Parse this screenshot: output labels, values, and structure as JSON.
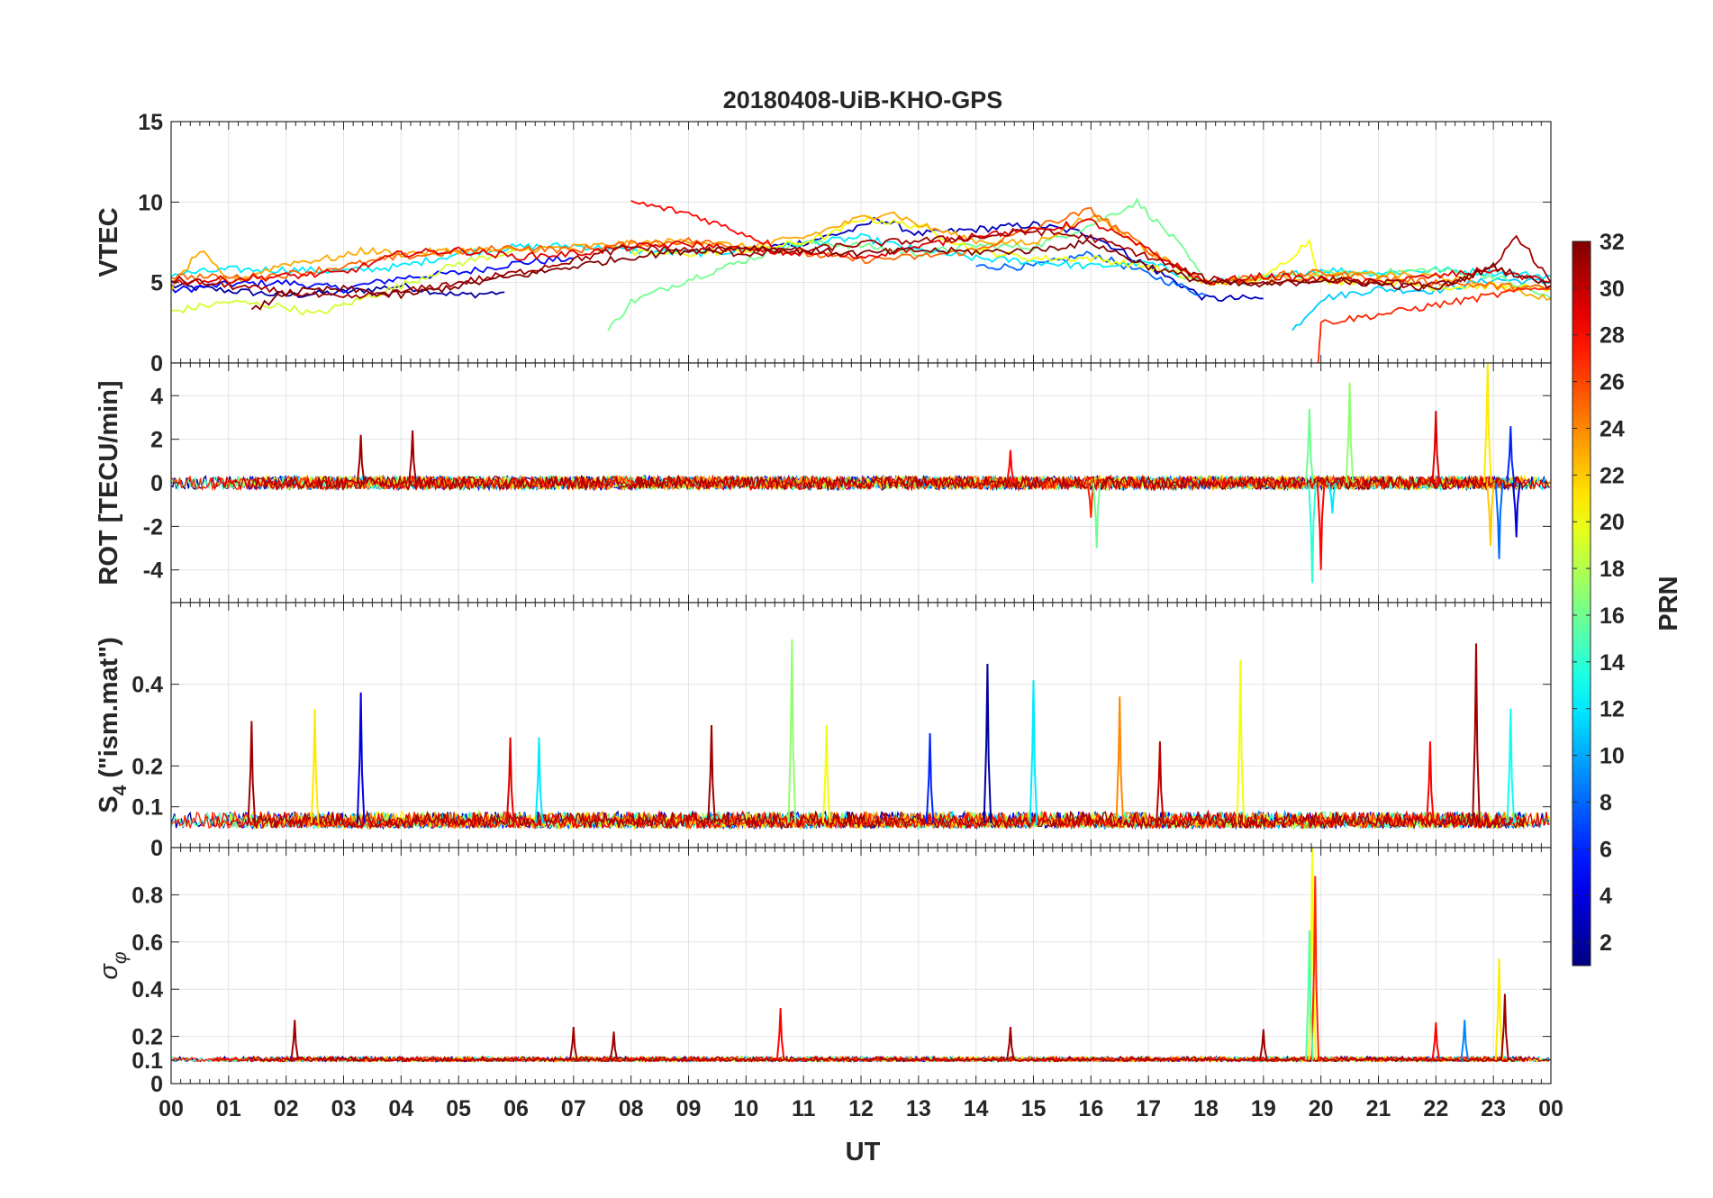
{
  "figure": {
    "title": "20180408-UiB-KHO-GPS",
    "xlabel": "UT",
    "colorbar": {
      "label": "PRN",
      "range": [
        1,
        32
      ],
      "ticks": [
        2,
        4,
        6,
        8,
        10,
        12,
        14,
        16,
        18,
        20,
        22,
        24,
        26,
        28,
        30,
        32
      ],
      "colormap": "jet",
      "colors": [
        "#00008f",
        "#0000ff",
        "#0080ff",
        "#00ffff",
        "#80ff80",
        "#ffff00",
        "#ff8000",
        "#ff0000",
        "#800000"
      ]
    }
  },
  "chart_data": [
    {
      "type": "line",
      "panel": "VTEC",
      "ylabel": "VTEC",
      "ylim": [
        0,
        15
      ],
      "yticks": [
        0,
        5,
        10,
        15
      ],
      "xlim": [
        0,
        24
      ],
      "xtick_labels": [
        "00",
        "01",
        "02",
        "03",
        "04",
        "05",
        "06",
        "07",
        "08",
        "09",
        "10",
        "11",
        "12",
        "13",
        "14",
        "15",
        "16",
        "17",
        "18",
        "19",
        "20",
        "21",
        "22",
        "23",
        "00"
      ],
      "grid": true,
      "series": [
        {
          "prn": 2,
          "x": [
            0,
            1,
            2,
            3,
            4,
            5,
            5.8
          ],
          "y": [
            4.8,
            4.5,
            4.2,
            4.4,
            4.8,
            4.2,
            4.4
          ]
        },
        {
          "prn": 5,
          "x": [
            0,
            1,
            2,
            3,
            4,
            5,
            6,
            7
          ],
          "y": [
            4.5,
            4.9,
            5.0,
            4.6,
            5.3,
            5.6,
            6.2,
            6.5
          ]
        },
        {
          "prn": 3,
          "x": [
            10,
            11,
            12,
            12.3,
            13,
            14,
            15,
            16,
            17,
            18,
            19
          ],
          "y": [
            7.0,
            7.5,
            8.4,
            9.0,
            8.0,
            8.3,
            8.6,
            8.0,
            6.0,
            4.0,
            4.0
          ]
        },
        {
          "prn": 8,
          "x": [
            14,
            15,
            16,
            17,
            18
          ],
          "y": [
            6.0,
            6.0,
            6.8,
            5.5,
            4.2
          ]
        },
        {
          "prn": 11,
          "x": [
            19.5,
            20,
            21,
            22,
            23,
            24
          ],
          "y": [
            2.0,
            4.0,
            4.6,
            4.5,
            5.2,
            5.0
          ]
        },
        {
          "prn": 12,
          "x": [
            0,
            1,
            2,
            3,
            4,
            5,
            6,
            7,
            8,
            9,
            10,
            11,
            12,
            13,
            14,
            15,
            16,
            17,
            18,
            19,
            20,
            21,
            22,
            23,
            24
          ],
          "y": [
            5.5,
            5.8,
            5.8,
            5.7,
            6.0,
            6.8,
            7.2,
            7.3,
            7.0,
            6.8,
            7.0,
            7.4,
            7.8,
            7.0,
            6.5,
            6.3,
            6.0,
            6.2,
            5.0,
            5.2,
            5.8,
            5.6,
            5.8,
            5.6,
            5.4
          ]
        },
        {
          "prn": 16,
          "x": [
            7.6,
            8,
            9,
            10,
            11,
            12,
            13,
            14,
            15,
            16,
            16.8,
            17.5,
            18,
            19,
            20,
            21,
            22,
            23,
            24
          ],
          "y": [
            2.0,
            3.8,
            5.2,
            6.4,
            7.5,
            7.3,
            6.8,
            7.3,
            7.2,
            8.6,
            10.0,
            7.5,
            5.0,
            5.3,
            5.5,
            5.6,
            5.8,
            5.4,
            4.0
          ]
        },
        {
          "prn": 19,
          "x": [
            0,
            1,
            2,
            2.5,
            3,
            4,
            5,
            6
          ],
          "y": [
            3.2,
            3.8,
            3.5,
            3.0,
            3.6,
            4.8,
            6.2,
            7.0
          ]
        },
        {
          "prn": 20,
          "x": [
            8,
            9,
            10,
            11,
            11.5,
            12,
            13,
            14,
            15,
            16,
            17,
            18,
            19,
            19.8,
            20,
            21,
            22,
            23,
            24
          ],
          "y": [
            6.8,
            6.8,
            7.0,
            7.5,
            8.0,
            9.0,
            8.5,
            7.0,
            6.5,
            6.5,
            6.0,
            5.0,
            5.2,
            7.6,
            5.0,
            5.2,
            4.7,
            4.8,
            4.6
          ]
        },
        {
          "prn": 23,
          "x": [
            0,
            0.5,
            1,
            2,
            3,
            3.3,
            4,
            5,
            6,
            7,
            8,
            9,
            10,
            11,
            12,
            12.5,
            13,
            14,
            15,
            16,
            17,
            18,
            19,
            20,
            21,
            22,
            23,
            24
          ],
          "y": [
            4.6,
            7.0,
            5.0,
            6.2,
            6.6,
            7.0,
            6.8,
            7.0,
            7.0,
            7.2,
            7.4,
            7.6,
            7.2,
            7.8,
            9.0,
            9.4,
            8.6,
            7.6,
            7.4,
            9.2,
            7.0,
            5.0,
            5.2,
            5.4,
            5.5,
            5.4,
            4.8,
            4.0
          ]
        },
        {
          "prn": 25,
          "x": [
            0,
            1,
            2,
            3,
            4,
            5,
            6,
            7,
            8,
            9,
            10,
            11,
            12,
            13,
            14,
            15,
            16,
            17,
            18,
            19,
            20,
            21,
            22,
            23,
            24
          ],
          "y": [
            5.4,
            5.3,
            5.5,
            6.0,
            6.6,
            6.9,
            7.2,
            7.0,
            7.4,
            7.6,
            7.2,
            6.8,
            6.4,
            6.6,
            7.0,
            8.4,
            9.5,
            7.0,
            5.0,
            5.4,
            5.6,
            5.3,
            5.0,
            4.8,
            4.6
          ]
        },
        {
          "prn": 28,
          "x": [
            8,
            9,
            10,
            10.6
          ],
          "y": [
            10.0,
            9.3,
            8.0,
            7.1
          ]
        },
        {
          "prn": 27,
          "x": [
            19.95,
            20,
            21,
            22,
            23,
            24
          ],
          "y": [
            0.0,
            2.5,
            3.0,
            3.6,
            4.2,
            4.8
          ]
        },
        {
          "prn": 29,
          "x": [
            0,
            1,
            2,
            3,
            4,
            5,
            6,
            7,
            8,
            9,
            10,
            11,
            12,
            13,
            14,
            15,
            16,
            17,
            18,
            19,
            20,
            21,
            22,
            23,
            24
          ],
          "y": [
            5.0,
            5.2,
            5.4,
            5.6,
            6.8,
            7.0,
            6.6,
            6.8,
            7.2,
            7.4,
            7.0,
            6.8,
            6.6,
            7.2,
            8.0,
            8.2,
            8.8,
            7.0,
            5.0,
            5.4,
            5.2,
            5.0,
            5.4,
            5.8,
            5.0
          ]
        },
        {
          "prn": 31,
          "x": [
            0,
            1,
            2,
            3,
            4,
            5,
            6,
            7,
            8,
            9,
            10,
            11,
            12,
            13,
            14,
            15,
            16,
            17,
            18,
            19,
            20,
            21,
            22,
            23,
            23.4,
            24
          ],
          "y": [
            5.2,
            4.8,
            4.4,
            4.0,
            4.4,
            5.0,
            5.6,
            6.4,
            7.2,
            7.0,
            6.8,
            7.0,
            7.4,
            7.6,
            7.8,
            8.2,
            7.8,
            6.6,
            5.2,
            5.0,
            5.2,
            5.0,
            4.8,
            5.8,
            8.0,
            5.0
          ]
        },
        {
          "prn": 32,
          "x": [
            1.4,
            2,
            3,
            4,
            5,
            6,
            7,
            8,
            9,
            10,
            11,
            12,
            13,
            14,
            15,
            16,
            17,
            18,
            19,
            20,
            21,
            22,
            23,
            24
          ],
          "y": [
            3.2,
            4.4,
            4.6,
            4.2,
            4.8,
            5.4,
            6.0,
            6.6,
            7.0,
            7.2,
            7.0,
            6.8,
            7.0,
            6.9,
            7.0,
            7.5,
            6.0,
            5.0,
            4.8,
            5.2,
            4.9,
            4.6,
            6.0,
            4.8
          ]
        }
      ]
    },
    {
      "type": "line",
      "panel": "ROT",
      "ylabel": "ROT [TECU/min]",
      "ylim": [
        -5.5,
        5.5
      ],
      "yticks": [
        -4,
        -2,
        0,
        2,
        4
      ],
      "xlim": [
        0,
        24
      ],
      "grid": true,
      "baseline": 0,
      "noise_amplitude": 0.3,
      "spikes": [
        {
          "prn": 31,
          "x": 3.3,
          "y": 2.2
        },
        {
          "prn": 31,
          "x": 4.2,
          "y": 2.4
        },
        {
          "prn": 28,
          "x": 14.6,
          "y": 1.5
        },
        {
          "prn": 27,
          "x": 16.0,
          "y": -1.6
        },
        {
          "prn": 16,
          "x": 16.1,
          "y": -3.0
        },
        {
          "prn": 16,
          "x": 19.8,
          "y": 3.4
        },
        {
          "prn": 14,
          "x": 19.85,
          "y": -4.6
        },
        {
          "prn": 28,
          "x": 20.0,
          "y": -4.0
        },
        {
          "prn": 17,
          "x": 20.5,
          "y": 4.6
        },
        {
          "prn": 29,
          "x": 22.0,
          "y": 3.3
        },
        {
          "prn": 21,
          "x": 22.9,
          "y": 5.5
        },
        {
          "prn": 22,
          "x": 22.95,
          "y": -2.9
        },
        {
          "prn": 6,
          "x": 23.3,
          "y": 2.6
        },
        {
          "prn": 4,
          "x": 23.4,
          "y": -2.5
        },
        {
          "prn": 12,
          "x": 20.2,
          "y": -1.4
        },
        {
          "prn": 8,
          "x": 23.1,
          "y": -3.5
        }
      ]
    },
    {
      "type": "line",
      "panel": "S4",
      "ylabel": "S4 (\"ism.mat\")",
      "ylabel_main": "S",
      "ylabel_sub": "4",
      "ylabel_rest": " (\"ism.mat\")",
      "ylim": [
        0,
        0.6
      ],
      "yticks": [
        0,
        0.1,
        0.2,
        0.4
      ],
      "xlim": [
        0,
        24
      ],
      "grid": true,
      "baseline": 0.06,
      "noise_amplitude": 0.04,
      "spikes": [
        {
          "prn": 31,
          "x": 1.4,
          "y": 0.31
        },
        {
          "prn": 21,
          "x": 2.5,
          "y": 0.34
        },
        {
          "prn": 4,
          "x": 3.3,
          "y": 0.38
        },
        {
          "prn": 29,
          "x": 5.9,
          "y": 0.27
        },
        {
          "prn": 12,
          "x": 6.4,
          "y": 0.27
        },
        {
          "prn": 31,
          "x": 9.4,
          "y": 0.3
        },
        {
          "prn": 17,
          "x": 10.8,
          "y": 0.51
        },
        {
          "prn": 20,
          "x": 11.4,
          "y": 0.3
        },
        {
          "prn": 6,
          "x": 13.2,
          "y": 0.28
        },
        {
          "prn": 2,
          "x": 14.2,
          "y": 0.45
        },
        {
          "prn": 12,
          "x": 15.0,
          "y": 0.41
        },
        {
          "prn": 24,
          "x": 16.5,
          "y": 0.37
        },
        {
          "prn": 30,
          "x": 17.2,
          "y": 0.26
        },
        {
          "prn": 20,
          "x": 18.6,
          "y": 0.46
        },
        {
          "prn": 28,
          "x": 21.9,
          "y": 0.26
        },
        {
          "prn": 31,
          "x": 22.7,
          "y": 0.5
        },
        {
          "prn": 13,
          "x": 23.3,
          "y": 0.34
        }
      ]
    },
    {
      "type": "line",
      "panel": "sigma_phi",
      "ylabel": "σ φ",
      "ylabel_main": "σ",
      "ylabel_sub": "φ",
      "ylim": [
        0,
        1
      ],
      "yticks": [
        0,
        0.1,
        0.2,
        0.4,
        0.6,
        0.8
      ],
      "xlim": [
        0,
        24
      ],
      "grid": true,
      "baseline": 0.1,
      "noise_amplitude": 0.02,
      "spikes": [
        {
          "prn": 31,
          "x": 2.15,
          "y": 0.27
        },
        {
          "prn": 31,
          "x": 7.0,
          "y": 0.24
        },
        {
          "prn": 31,
          "x": 7.7,
          "y": 0.22
        },
        {
          "prn": 28,
          "x": 10.6,
          "y": 0.32
        },
        {
          "prn": 31,
          "x": 14.6,
          "y": 0.24
        },
        {
          "prn": 31,
          "x": 19.0,
          "y": 0.23
        },
        {
          "prn": 20,
          "x": 19.85,
          "y": 1.0
        },
        {
          "prn": 27,
          "x": 19.9,
          "y": 0.88
        },
        {
          "prn": 15,
          "x": 19.8,
          "y": 0.65
        },
        {
          "prn": 28,
          "x": 22.0,
          "y": 0.26
        },
        {
          "prn": 9,
          "x": 22.5,
          "y": 0.27
        },
        {
          "prn": 21,
          "x": 23.1,
          "y": 0.53
        },
        {
          "prn": 31,
          "x": 23.2,
          "y": 0.38
        }
      ]
    }
  ]
}
